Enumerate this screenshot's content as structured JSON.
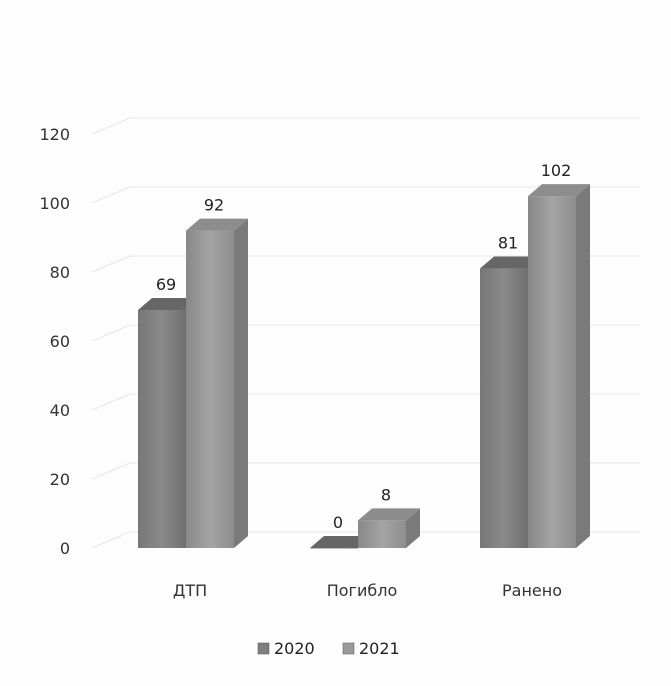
{
  "chart_data": {
    "type": "bar",
    "title": "",
    "xlabel": "",
    "ylabel": "",
    "ylim": [
      0,
      120
    ],
    "yticks": [
      0,
      20,
      40,
      60,
      80,
      100,
      120
    ],
    "categories": [
      "ДТП",
      "Погибло",
      "Ранено"
    ],
    "series": [
      {
        "name": "2020",
        "values": [
          69,
          0,
          81
        ],
        "labels": [
          "69",
          "0",
          "81"
        ],
        "color": "#7f7f7f"
      },
      {
        "name": "2021",
        "values": [
          92,
          8,
          102
        ],
        "labels": [
          "92",
          "8",
          "102"
        ],
        "color": "#9a9a9a"
      }
    ],
    "grid": true,
    "legend": "bottom",
    "style": "3d-columns"
  }
}
